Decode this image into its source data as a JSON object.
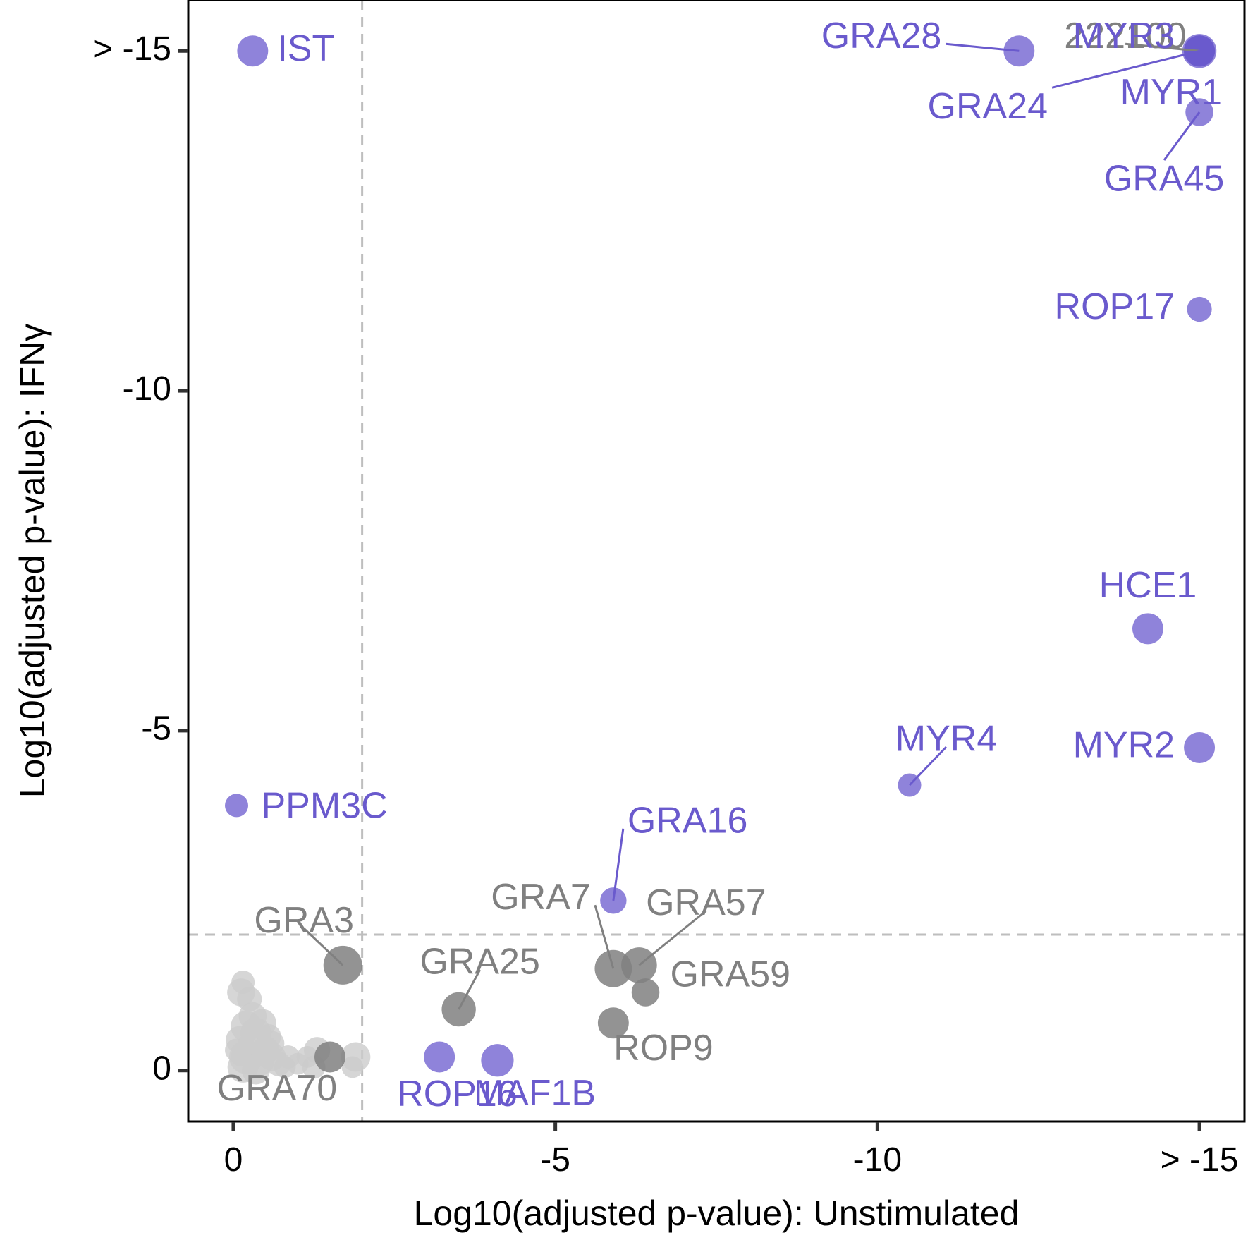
{
  "chart_data": {
    "type": "scatter",
    "xlabel": "Log10(adjusted p-value): Unstimulated",
    "ylabel": "Log10(adjusted p-value): IFNγ",
    "xlim": [
      0.7,
      -15.7
    ],
    "ylim": [
      0.75,
      -15.75
    ],
    "x_ticks": [
      {
        "value": 0,
        "label": "0"
      },
      {
        "value": -5,
        "label": "-5"
      },
      {
        "value": -10,
        "label": "-10"
      },
      {
        "value": -15,
        "label": "> -15"
      }
    ],
    "y_ticks": [
      {
        "value": 0,
        "label": "0"
      },
      {
        "value": -5,
        "label": "-5"
      },
      {
        "value": -10,
        "label": "-10"
      },
      {
        "value": -15,
        "label": "> -15"
      }
    ],
    "threshold_x": -2,
    "threshold_y": -2,
    "grid": false,
    "legend": "none",
    "colors": {
      "purple": "#6A5ACD",
      "dark_gray": "#808080",
      "light_gray": "#CCCCCC",
      "reference_line": "#BEBEBE"
    },
    "points": [
      {
        "label": "IST",
        "x": -0.3,
        "y": -15,
        "size": 2,
        "color": "purple"
      },
      {
        "label": "GRA28",
        "x": -12.2,
        "y": -15,
        "size": 2,
        "color": "purple"
      },
      {
        "label": "222100",
        "x": -15,
        "y": -15,
        "size": 2,
        "color": "dark_gray"
      },
      {
        "label": "MYR3",
        "x": -15,
        "y": -15,
        "size": 2.2,
        "color": "purple"
      },
      {
        "label": "GRA24",
        "x": -15,
        "y": -15,
        "size": 2,
        "color": "purple"
      },
      {
        "label": "MYR1",
        "x": -15,
        "y": -15,
        "size": 2,
        "color": "purple"
      },
      {
        "label": "GRA45",
        "x": -15,
        "y": -14.1,
        "size": 1.8,
        "color": "purple"
      },
      {
        "label": "ROP17",
        "x": -15,
        "y": -11.2,
        "size": 1.6,
        "color": "purple"
      },
      {
        "label": "HCE1",
        "x": -14.2,
        "y": -6.5,
        "size": 2,
        "color": "purple"
      },
      {
        "label": "MYR2",
        "x": -15,
        "y": -4.75,
        "size": 2,
        "color": "purple"
      },
      {
        "label": "MYR4",
        "x": -10.5,
        "y": -4.2,
        "size": 1.5,
        "color": "purple"
      },
      {
        "label": "PPM3C",
        "x": -0.05,
        "y": -3.9,
        "size": 1.5,
        "color": "purple"
      },
      {
        "label": "GRA16",
        "x": -5.9,
        "y": -2.5,
        "size": 1.7,
        "color": "purple"
      },
      {
        "label": "GRA3",
        "x": -1.7,
        "y": -1.55,
        "size": 2.5,
        "color": "dark_gray"
      },
      {
        "label": "GRA7",
        "x": -5.9,
        "y": -1.5,
        "size": 2.4,
        "color": "dark_gray"
      },
      {
        "label": "GRA57",
        "x": -6.3,
        "y": -1.55,
        "size": 2.3,
        "color": "dark_gray"
      },
      {
        "label": "GRA59",
        "x": -6.4,
        "y": -1.15,
        "size": 1.8,
        "color": "dark_gray"
      },
      {
        "label": "GRA25",
        "x": -3.5,
        "y": -0.9,
        "size": 2.2,
        "color": "dark_gray"
      },
      {
        "label": "",
        "x": -5.9,
        "y": -0.7,
        "size": 2,
        "color": "dark_gray"
      },
      {
        "label": "GRA70",
        "x": -1.5,
        "y": -0.2,
        "size": 2,
        "color": "dark_gray"
      },
      {
        "label": "ROP16",
        "x": -3.2,
        "y": -0.2,
        "size": 2,
        "color": "purple"
      },
      {
        "label": "MAF1B",
        "x": -4.1,
        "y": -0.15,
        "size": 2.1,
        "color": "purple"
      },
      {
        "label": "ROP9",
        "x": -0.1,
        "y": -0.2,
        "size": 1.2,
        "color": "light_gray"
      },
      {
        "label": "",
        "x": -0.12,
        "y": -1.15,
        "size": 1.8,
        "color": "light_gray"
      },
      {
        "label": "",
        "x": -0.15,
        "y": -1.3,
        "size": 1.5,
        "color": "light_gray"
      },
      {
        "label": "",
        "x": -0.25,
        "y": -1.05,
        "size": 1.6,
        "color": "light_gray"
      },
      {
        "label": "",
        "x": -0.3,
        "y": -0.8,
        "size": 1.8,
        "color": "light_gray"
      },
      {
        "label": "",
        "x": -0.2,
        "y": -0.65,
        "size": 2,
        "color": "light_gray"
      },
      {
        "label": "",
        "x": -0.35,
        "y": -0.55,
        "size": 2,
        "color": "light_gray"
      },
      {
        "label": "",
        "x": -0.45,
        "y": -0.7,
        "size": 1.8,
        "color": "light_gray"
      },
      {
        "label": "",
        "x": -0.55,
        "y": -0.5,
        "size": 1.6,
        "color": "light_gray"
      },
      {
        "label": "",
        "x": -0.1,
        "y": -0.45,
        "size": 1.8,
        "color": "light_gray"
      },
      {
        "label": "",
        "x": -0.3,
        "y": -0.35,
        "size": 2,
        "color": "light_gray"
      },
      {
        "label": "",
        "x": -0.5,
        "y": -0.3,
        "size": 1.8,
        "color": "light_gray"
      },
      {
        "label": "",
        "x": -0.2,
        "y": -0.2,
        "size": 2.2,
        "color": "light_gray"
      },
      {
        "label": "",
        "x": -0.4,
        "y": -0.15,
        "size": 2,
        "color": "light_gray"
      },
      {
        "label": "",
        "x": -0.6,
        "y": -0.2,
        "size": 1.8,
        "color": "light_gray"
      },
      {
        "label": "",
        "x": -0.15,
        "y": -0.05,
        "size": 2,
        "color": "light_gray"
      },
      {
        "label": "",
        "x": -0.35,
        "y": 0,
        "size": 1.8,
        "color": "light_gray"
      },
      {
        "label": "",
        "x": -0.7,
        "y": -0.1,
        "size": 1.6,
        "color": "light_gray"
      },
      {
        "label": "",
        "x": -0.85,
        "y": -0.2,
        "size": 1.5,
        "color": "light_gray"
      },
      {
        "label": "",
        "x": -0.8,
        "y": -0.05,
        "size": 1.4,
        "color": "light_gray"
      },
      {
        "label": "",
        "x": -1.0,
        "y": -0.1,
        "size": 1.4,
        "color": "light_gray"
      },
      {
        "label": "",
        "x": -1.15,
        "y": -0.2,
        "size": 1.4,
        "color": "light_gray"
      },
      {
        "label": "",
        "x": -1.3,
        "y": -0.3,
        "size": 1.7,
        "color": "light_gray"
      },
      {
        "label": "",
        "x": -1.25,
        "y": -0.05,
        "size": 1.5,
        "color": "light_gray"
      },
      {
        "label": "",
        "x": -1.9,
        "y": -0.2,
        "size": 1.9,
        "color": "light_gray"
      },
      {
        "label": "",
        "x": -1.85,
        "y": -0.05,
        "size": 1.4,
        "color": "light_gray"
      },
      {
        "label": "",
        "x": -0.05,
        "y": -0.3,
        "size": 1.5,
        "color": "light_gray"
      },
      {
        "label": "",
        "x": -0.6,
        "y": -0.4,
        "size": 1.6,
        "color": "light_gray"
      }
    ]
  }
}
